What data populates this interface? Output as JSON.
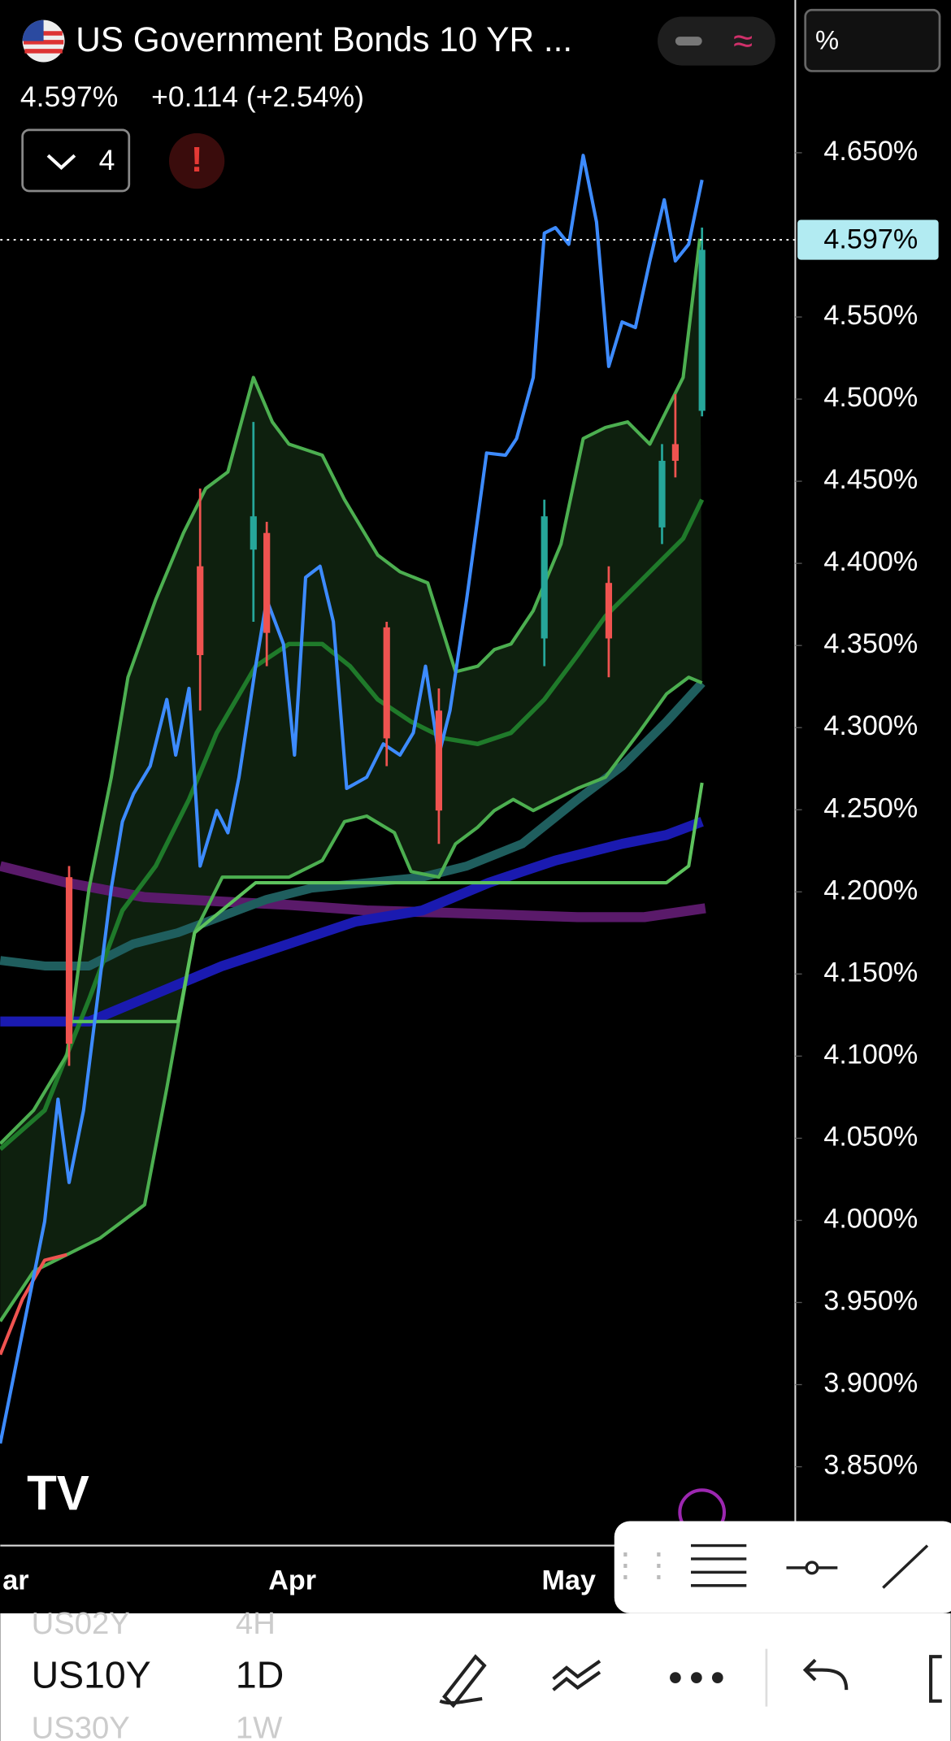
{
  "header": {
    "symbol_name": "US Government Bonds 10 YR ...",
    "price": "4.597%",
    "change": "+0.114 (+2.54%)",
    "indicators_count": "4",
    "unit_button": "%"
  },
  "chart_data": {
    "type": "candlestick",
    "ylim": [
      3.802,
      4.743
    ],
    "yticks": [
      {
        "value": 4.65,
        "label": "4.650%"
      },
      {
        "value": 4.55,
        "label": "4.550%"
      },
      {
        "value": 4.5,
        "label": "4.500%"
      },
      {
        "value": 4.45,
        "label": "4.450%"
      },
      {
        "value": 4.4,
        "label": "4.400%"
      },
      {
        "value": 4.35,
        "label": "4.350%"
      },
      {
        "value": 4.3,
        "label": "4.300%"
      },
      {
        "value": 4.25,
        "label": "4.250%"
      },
      {
        "value": 4.2,
        "label": "4.200%"
      },
      {
        "value": 4.15,
        "label": "4.150%"
      },
      {
        "value": 4.1,
        "label": "4.100%"
      },
      {
        "value": 4.05,
        "label": "4.050%"
      },
      {
        "value": 4.0,
        "label": "4.000%"
      },
      {
        "value": 3.95,
        "label": "3.950%"
      },
      {
        "value": 3.9,
        "label": "3.900%"
      },
      {
        "value": 3.85,
        "label": "3.850%"
      }
    ],
    "last_price": {
      "value": 4.597,
      "label": "4.597%"
    },
    "categories": [
      "ar",
      "Apr",
      "May"
    ]
  },
  "bottom_bar": {
    "symbols": [
      "US02Y",
      "US10Y",
      "US30Y"
    ],
    "intervals": [
      "4H",
      "1D",
      "1W"
    ]
  }
}
